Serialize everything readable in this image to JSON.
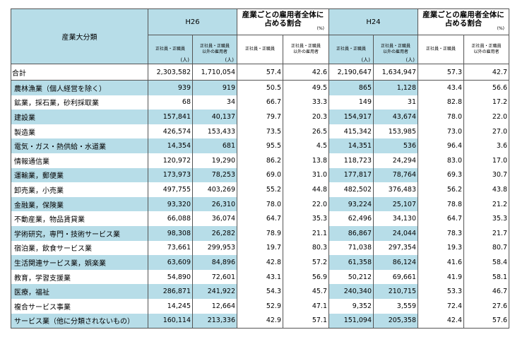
{
  "header": {
    "industry_label": "産業大分類",
    "year_a": "H26",
    "year_b": "H24",
    "share_label_line1": "産業ごとの雇用者全体に",
    "share_label_line2": "占める割合",
    "share_unit": "(%)",
    "sub_regular": "正社員・正職員",
    "sub_nonregular_line1": "正社員・正職員",
    "sub_nonregular_line2": "以外の雇用者",
    "person_unit": "(人)"
  },
  "rows": [
    {
      "name": "合計",
      "h26_reg": "2,303,582",
      "h26_non": "1,710,054",
      "h26_reg_pct": "57.4",
      "h26_non_pct": "42.6",
      "h24_reg": "2,190,647",
      "h24_non": "1,634,947",
      "h24_reg_pct": "57.3",
      "h24_non_pct": "42.7"
    },
    {
      "name": "農林漁業（個人経営を除く）",
      "h26_reg": "939",
      "h26_non": "919",
      "h26_reg_pct": "50.5",
      "h26_non_pct": "49.5",
      "h24_reg": "865",
      "h24_non": "1,128",
      "h24_reg_pct": "43.4",
      "h24_non_pct": "56.6"
    },
    {
      "name": "鉱業，採石業，砂利採取業",
      "h26_reg": "68",
      "h26_non": "34",
      "h26_reg_pct": "66.7",
      "h26_non_pct": "33.3",
      "h24_reg": "149",
      "h24_non": "31",
      "h24_reg_pct": "82.8",
      "h24_non_pct": "17.2"
    },
    {
      "name": "建設業",
      "h26_reg": "157,841",
      "h26_non": "40,137",
      "h26_reg_pct": "79.7",
      "h26_non_pct": "20.3",
      "h24_reg": "154,917",
      "h24_non": "43,674",
      "h24_reg_pct": "78.0",
      "h24_non_pct": "22.0"
    },
    {
      "name": "製造業",
      "h26_reg": "426,574",
      "h26_non": "153,433",
      "h26_reg_pct": "73.5",
      "h26_non_pct": "26.5",
      "h24_reg": "415,342",
      "h24_non": "153,985",
      "h24_reg_pct": "73.0",
      "h24_non_pct": "27.0"
    },
    {
      "name": "電気・ガス・熱供給・水道業",
      "h26_reg": "14,354",
      "h26_non": "681",
      "h26_reg_pct": "95.5",
      "h26_non_pct": "4.5",
      "h24_reg": "14,351",
      "h24_non": "536",
      "h24_reg_pct": "96.4",
      "h24_non_pct": "3.6"
    },
    {
      "name": "情報通信業",
      "h26_reg": "120,972",
      "h26_non": "19,290",
      "h26_reg_pct": "86.2",
      "h26_non_pct": "13.8",
      "h24_reg": "118,723",
      "h24_non": "24,294",
      "h24_reg_pct": "83.0",
      "h24_non_pct": "17.0"
    },
    {
      "name": "運輸業，郵便業",
      "h26_reg": "173,973",
      "h26_non": "78,253",
      "h26_reg_pct": "69.0",
      "h26_non_pct": "31.0",
      "h24_reg": "177,817",
      "h24_non": "78,764",
      "h24_reg_pct": "69.3",
      "h24_non_pct": "30.7"
    },
    {
      "name": "卸売業，小売業",
      "h26_reg": "497,755",
      "h26_non": "403,269",
      "h26_reg_pct": "55.2",
      "h26_non_pct": "44.8",
      "h24_reg": "482,502",
      "h24_non": "376,483",
      "h24_reg_pct": "56.2",
      "h24_non_pct": "43.8"
    },
    {
      "name": "金融業，保険業",
      "h26_reg": "93,320",
      "h26_non": "26,310",
      "h26_reg_pct": "78.0",
      "h26_non_pct": "22.0",
      "h24_reg": "93,224",
      "h24_non": "25,107",
      "h24_reg_pct": "78.8",
      "h24_non_pct": "21.2"
    },
    {
      "name": "不動産業，物品賃貸業",
      "h26_reg": "66,088",
      "h26_non": "36,074",
      "h26_reg_pct": "64.7",
      "h26_non_pct": "35.3",
      "h24_reg": "62,496",
      "h24_non": "34,130",
      "h24_reg_pct": "64.7",
      "h24_non_pct": "35.3"
    },
    {
      "name": "学術研究，専門・技術サービス業",
      "h26_reg": "98,308",
      "h26_non": "26,282",
      "h26_reg_pct": "78.9",
      "h26_non_pct": "21.1",
      "h24_reg": "86,867",
      "h24_non": "24,044",
      "h24_reg_pct": "78.3",
      "h24_non_pct": "21.7"
    },
    {
      "name": "宿泊業，飲食サービス業",
      "h26_reg": "73,661",
      "h26_non": "299,953",
      "h26_reg_pct": "19.7",
      "h26_non_pct": "80.3",
      "h24_reg": "71,038",
      "h24_non": "297,354",
      "h24_reg_pct": "19.3",
      "h24_non_pct": "80.7"
    },
    {
      "name": "生活関連サービス業，娯楽業",
      "h26_reg": "63,609",
      "h26_non": "84,896",
      "h26_reg_pct": "42.8",
      "h26_non_pct": "57.2",
      "h24_reg": "61,358",
      "h24_non": "86,124",
      "h24_reg_pct": "41.6",
      "h24_non_pct": "58.4"
    },
    {
      "name": "教育，学習支援業",
      "h26_reg": "54,890",
      "h26_non": "72,601",
      "h26_reg_pct": "43.1",
      "h26_non_pct": "56.9",
      "h24_reg": "50,212",
      "h24_non": "69,661",
      "h24_reg_pct": "41.9",
      "h24_non_pct": "58.1"
    },
    {
      "name": "医療，福祉",
      "h26_reg": "286,871",
      "h26_non": "241,922",
      "h26_reg_pct": "54.3",
      "h26_non_pct": "45.7",
      "h24_reg": "240,340",
      "h24_non": "210,715",
      "h24_reg_pct": "53.3",
      "h24_non_pct": "46.7"
    },
    {
      "name": "複合サービス事業",
      "h26_reg": "14,245",
      "h26_non": "12,664",
      "h26_reg_pct": "52.9",
      "h26_non_pct": "47.1",
      "h24_reg": "9,352",
      "h24_non": "3,559",
      "h24_reg_pct": "72.4",
      "h24_non_pct": "27.6"
    },
    {
      "name": "サービス業（他に分類されないもの）",
      "h26_reg": "160,114",
      "h26_non": "213,336",
      "h26_reg_pct": "42.9",
      "h26_non_pct": "57.1",
      "h24_reg": "151,094",
      "h24_non": "205,358",
      "h24_reg_pct": "42.4",
      "h24_non_pct": "57.6"
    }
  ]
}
